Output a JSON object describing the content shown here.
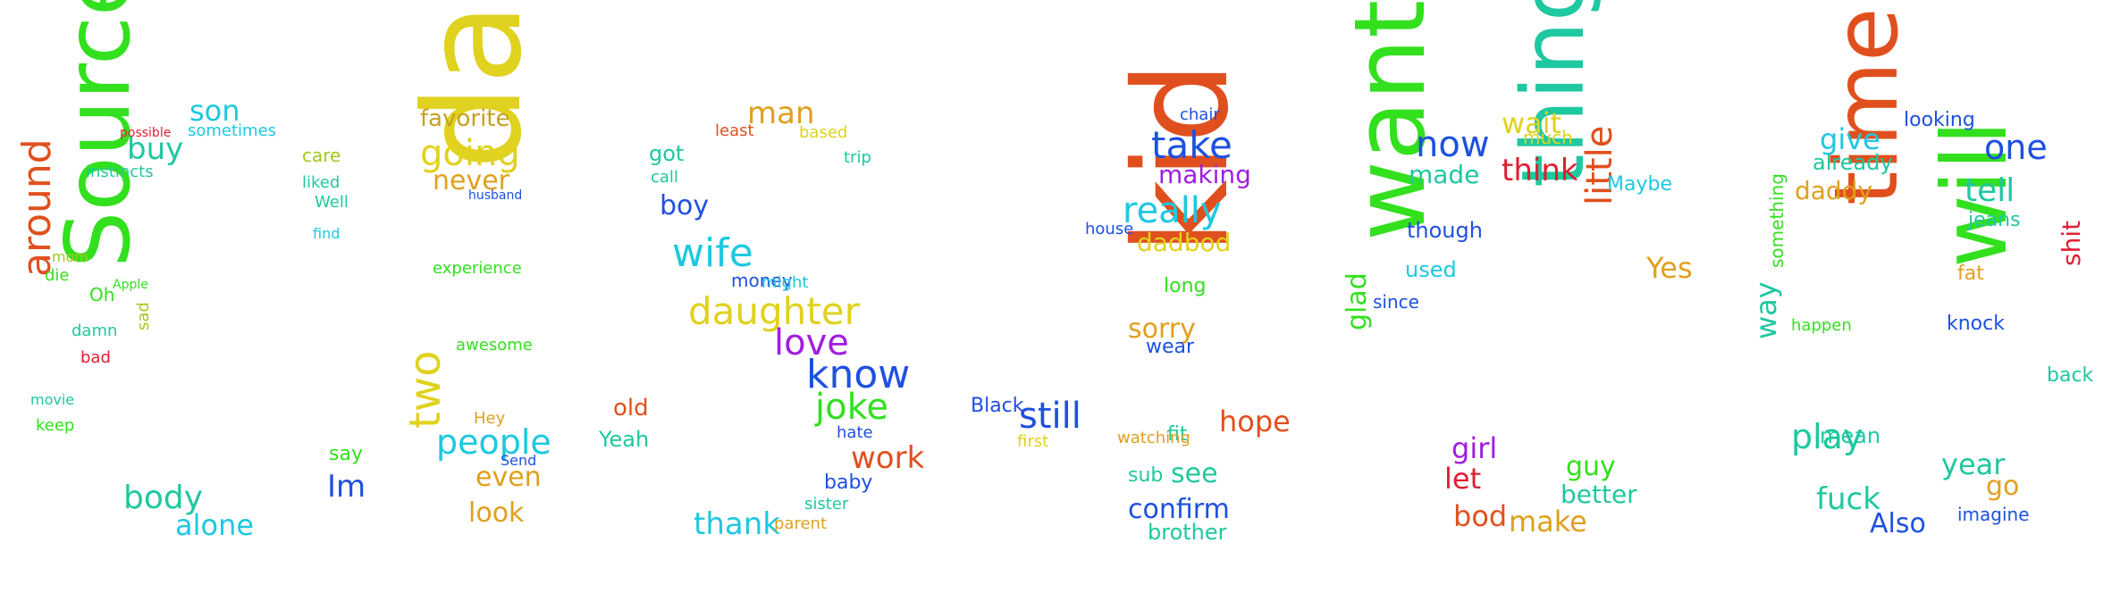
{
  "wordcloud": {
    "words": [
      {
        "text": "Source",
        "color": "#32e01e"
      },
      {
        "text": "around",
        "color": "#e0501e"
      },
      {
        "text": "son",
        "color": "#1ec8e0"
      },
      {
        "text": "buy",
        "color": "#1ec8a0"
      },
      {
        "text": "sometimes",
        "color": "#1ec8e0"
      },
      {
        "text": "instincts",
        "color": "#1ec8a0"
      },
      {
        "text": "Oh",
        "color": "#32e01e"
      },
      {
        "text": "body",
        "color": "#1ec8a0"
      },
      {
        "text": "alone",
        "color": "#1ec8e0"
      },
      {
        "text": "keep",
        "color": "#32e01e"
      },
      {
        "text": "Im",
        "color": "#1e50e0"
      },
      {
        "text": "say",
        "color": "#32e01e"
      },
      {
        "text": "care",
        "color": "#a0c81e"
      },
      {
        "text": "Well",
        "color": "#1ec8a0"
      },
      {
        "text": "liked",
        "color": "#1ec8a0"
      },
      {
        "text": "find",
        "color": "#1ec8e0"
      },
      {
        "text": "damn",
        "color": "#1ec8a0"
      },
      {
        "text": "die",
        "color": "#32e01e"
      },
      {
        "text": "mom",
        "color": "#a0c81e"
      },
      {
        "text": "bad",
        "color": "#e01e32"
      },
      {
        "text": "movie",
        "color": "#1ec8a0"
      },
      {
        "text": "sad",
        "color": "#a0c81e"
      },
      {
        "text": "Apple",
        "color": "#32e01e"
      },
      {
        "text": "possible",
        "color": "#e01e32"
      },
      {
        "text": "dad",
        "color": "#e0d21e"
      },
      {
        "text": "going",
        "color": "#e0d21e"
      },
      {
        "text": "favorite",
        "color": "#c8a01e"
      },
      {
        "text": "never",
        "color": "#e0a01e"
      },
      {
        "text": "people",
        "color": "#1ec8e0"
      },
      {
        "text": "two",
        "color": "#e0d21e"
      },
      {
        "text": "look",
        "color": "#e0a01e"
      },
      {
        "text": "even",
        "color": "#e0a01e"
      },
      {
        "text": "awesome",
        "color": "#32e01e"
      },
      {
        "text": "experience",
        "color": "#32e01e"
      },
      {
        "text": "Hey",
        "color": "#e0a01e"
      },
      {
        "text": "husband",
        "color": "#1e50e0"
      },
      {
        "text": "Send",
        "color": "#1e50e0"
      },
      {
        "text": "wife",
        "color": "#1ec8e0"
      },
      {
        "text": "daughter",
        "color": "#e0d21e"
      },
      {
        "text": "love",
        "color": "#a01ee0"
      },
      {
        "text": "know",
        "color": "#1e50e0"
      },
      {
        "text": "joke",
        "color": "#32e01e"
      },
      {
        "text": "work",
        "color": "#e0501e"
      },
      {
        "text": "thank",
        "color": "#1ec8e0"
      },
      {
        "text": "man",
        "color": "#e0a01e"
      },
      {
        "text": "boy",
        "color": "#1e50e0"
      },
      {
        "text": "got",
        "color": "#1ec8a0"
      },
      {
        "text": "money",
        "color": "#1e50e0"
      },
      {
        "text": "hate",
        "color": "#1e50e0"
      },
      {
        "text": "old",
        "color": "#e0501e"
      },
      {
        "text": "Yeah",
        "color": "#1ec8a0"
      },
      {
        "text": "baby",
        "color": "#1e50e0"
      },
      {
        "text": "parent",
        "color": "#e0a01e"
      },
      {
        "text": "sister",
        "color": "#1ec8a0"
      },
      {
        "text": "call",
        "color": "#1ec8a0"
      },
      {
        "text": "trip",
        "color": "#1ec8a0"
      },
      {
        "text": "based",
        "color": "#e0d21e"
      },
      {
        "text": "least",
        "color": "#e0501e"
      },
      {
        "text": "might",
        "color": "#1ec8e0"
      },
      {
        "text": "kid",
        "color": "#e0501e"
      },
      {
        "text": "still",
        "color": "#1e50e0"
      },
      {
        "text": "take",
        "color": "#1e50e0"
      },
      {
        "text": "really",
        "color": "#1ec8e0"
      },
      {
        "text": "making",
        "color": "#a01ee0"
      },
      {
        "text": "dadbod",
        "color": "#e0d21e"
      },
      {
        "text": "sorry",
        "color": "#e0a01e"
      },
      {
        "text": "hope",
        "color": "#e0501e"
      },
      {
        "text": "see",
        "color": "#1ec8a0"
      },
      {
        "text": "confirm",
        "color": "#1e50e0"
      },
      {
        "text": "brother",
        "color": "#1ec8a0"
      },
      {
        "text": "fit",
        "color": "#1ec8a0"
      },
      {
        "text": "wear",
        "color": "#1e50e0"
      },
      {
        "text": "long",
        "color": "#32e01e"
      },
      {
        "text": "sub",
        "color": "#1ec8a0"
      },
      {
        "text": "Black",
        "color": "#1e50e0"
      },
      {
        "text": "watching",
        "color": "#e0a01e"
      },
      {
        "text": "first",
        "color": "#e0d21e"
      },
      {
        "text": "house",
        "color": "#1e50e0"
      },
      {
        "text": "chair",
        "color": "#1e50e0"
      },
      {
        "text": "want",
        "color": "#32e01e"
      },
      {
        "text": "thing",
        "color": "#1ec8a0"
      },
      {
        "text": "now",
        "color": "#1e50e0"
      },
      {
        "text": "made",
        "color": "#1ec8a0"
      },
      {
        "text": "wait",
        "color": "#e0d21e"
      },
      {
        "text": "think",
        "color": "#e01e32"
      },
      {
        "text": "little",
        "color": "#e0501e"
      },
      {
        "text": "Yes",
        "color": "#e0a01e"
      },
      {
        "text": "Maybe",
        "color": "#1ec8e0"
      },
      {
        "text": "girl",
        "color": "#a01ee0"
      },
      {
        "text": "let",
        "color": "#e01e32"
      },
      {
        "text": "bod",
        "color": "#e0501e"
      },
      {
        "text": "make",
        "color": "#e0a01e"
      },
      {
        "text": "better",
        "color": "#1ec8a0"
      },
      {
        "text": "guy",
        "color": "#32e01e"
      },
      {
        "text": "glad",
        "color": "#32e01e"
      },
      {
        "text": "used",
        "color": "#1ec8e0"
      },
      {
        "text": "though",
        "color": "#1e50e0"
      },
      {
        "text": "since",
        "color": "#1e50e0"
      },
      {
        "text": "much",
        "color": "#e0d21e"
      },
      {
        "text": "time",
        "color": "#e0501e"
      },
      {
        "text": "will",
        "color": "#32e01e"
      },
      {
        "text": "one",
        "color": "#1e50e0"
      },
      {
        "text": "tell",
        "color": "#1ec8a0"
      },
      {
        "text": "give",
        "color": "#1ec8e0"
      },
      {
        "text": "daddy",
        "color": "#e0a01e"
      },
      {
        "text": "already",
        "color": "#1ec8a0"
      },
      {
        "text": "play",
        "color": "#1ec8a0"
      },
      {
        "text": "fuck",
        "color": "#1ec8a0"
      },
      {
        "text": "Also",
        "color": "#1e50e0"
      },
      {
        "text": "year",
        "color": "#1ec8a0"
      },
      {
        "text": "go",
        "color": "#e0a01e"
      },
      {
        "text": "way",
        "color": "#1ec8a0"
      },
      {
        "text": "mean",
        "color": "#1ec8a0"
      },
      {
        "text": "knock",
        "color": "#1e50e0"
      },
      {
        "text": "looking",
        "color": "#1e50e0"
      },
      {
        "text": "shit",
        "color": "#e01e32"
      },
      {
        "text": "fat",
        "color": "#e0a01e"
      },
      {
        "text": "back",
        "color": "#1ec8a0"
      },
      {
        "text": "imagine",
        "color": "#1e50e0"
      },
      {
        "text": "something",
        "color": "#32e01e"
      },
      {
        "text": "jeans",
        "color": "#1ec8a0"
      },
      {
        "text": "happen",
        "color": "#32e01e"
      }
    ]
  }
}
